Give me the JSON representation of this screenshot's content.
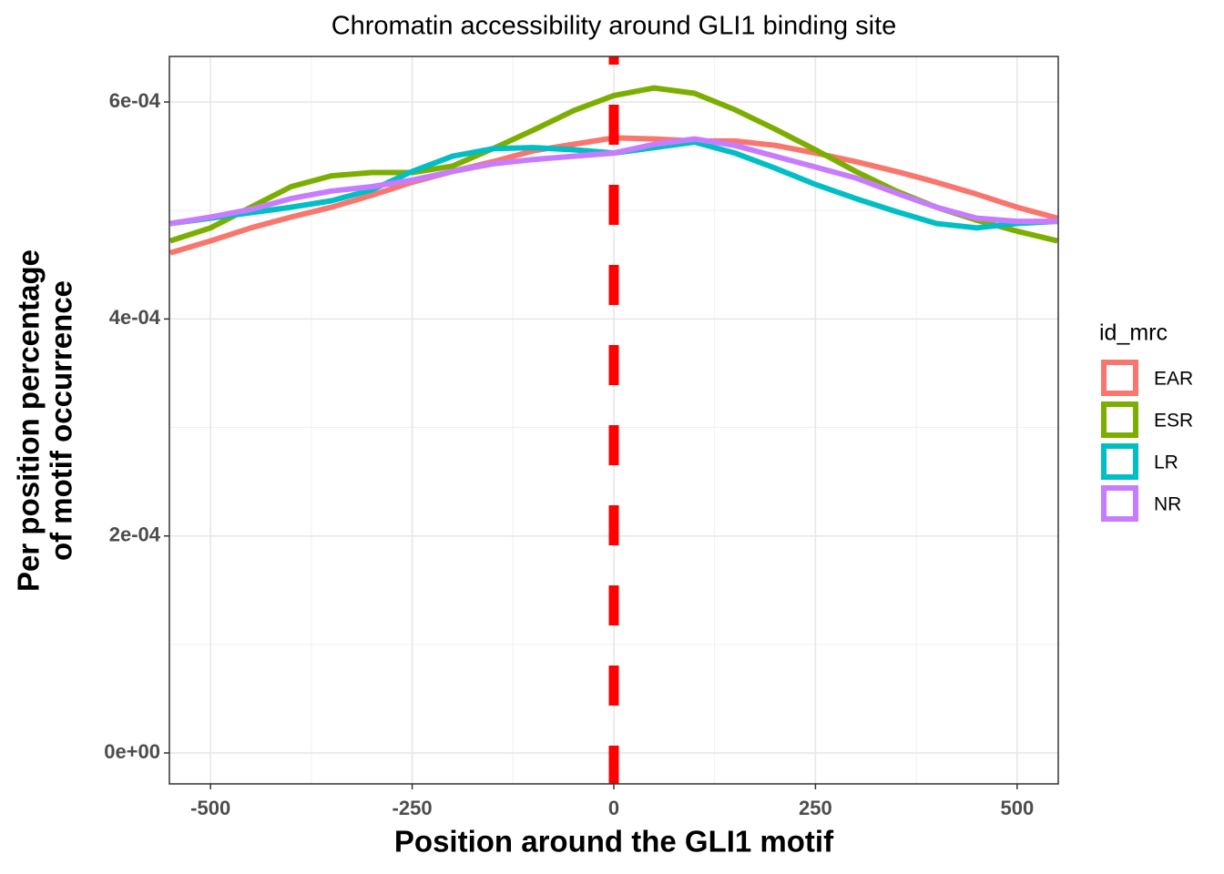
{
  "chart_data": {
    "type": "line",
    "title": "Chromatin accessibility around GLI1 binding site",
    "xlabel": "Position around the GLI1  motif",
    "ylabel": [
      "Per position percentage",
      "of motif occurrence"
    ],
    "x": [
      -550,
      -500,
      -450,
      -400,
      -350,
      -300,
      -250,
      -200,
      -150,
      -100,
      -50,
      0,
      50,
      100,
      150,
      200,
      250,
      300,
      350,
      400,
      450,
      500,
      550
    ],
    "series": [
      {
        "name": "EAR",
        "color": "#F8766D",
        "values": [
          0.000461,
          0.000472,
          0.000484,
          0.000494,
          0.000503,
          0.000514,
          0.000526,
          0.000536,
          0.000545,
          0.000555,
          0.000561,
          0.000567,
          0.000566,
          0.000564,
          0.000564,
          0.00056,
          0.000553,
          0.000545,
          0.000536,
          0.000526,
          0.000515,
          0.000503,
          0.000493
        ]
      },
      {
        "name": "ESR",
        "color": "#7CAE00",
        "values": [
          0.000472,
          0.000484,
          0.000503,
          0.000522,
          0.000532,
          0.000535,
          0.000535,
          0.000541,
          0.000557,
          0.000574,
          0.000592,
          0.000606,
          0.000613,
          0.000608,
          0.000593,
          0.000575,
          0.000556,
          0.000536,
          0.000518,
          0.000503,
          0.000491,
          0.000481,
          0.000472
        ]
      },
      {
        "name": "LR",
        "color": "#00BFC4",
        "values": [
          0.000488,
          0.000493,
          0.000498,
          0.000503,
          0.000509,
          0.000519,
          0.000536,
          0.00055,
          0.000557,
          0.000558,
          0.000556,
          0.000553,
          0.000558,
          0.000563,
          0.000553,
          0.000539,
          0.000524,
          0.000511,
          0.000499,
          0.000488,
          0.000484,
          0.000488,
          0.00049
        ]
      },
      {
        "name": "NR",
        "color": "#C77CFF",
        "values": [
          0.000488,
          0.000494,
          0.000501,
          0.000511,
          0.000518,
          0.000522,
          0.000528,
          0.000536,
          0.000543,
          0.000547,
          0.00055,
          0.000553,
          0.000561,
          0.000566,
          0.00056,
          0.00055,
          0.00054,
          0.00053,
          0.000516,
          0.000503,
          0.000493,
          0.00049,
          0.00049
        ]
      }
    ],
    "legend_title": "id_mrc",
    "xlim": [
      -551,
      551
    ],
    "ylim": [
      -2.85e-05,
      0.000642
    ],
    "xticks": [
      -500,
      -250,
      0,
      250,
      500
    ],
    "yticks": [
      {
        "value": 0,
        "label": "0e+00"
      },
      {
        "value": 0.0002,
        "label": "2e-04"
      },
      {
        "value": 0.0004,
        "label": "4e-04"
      },
      {
        "value": 0.0006,
        "label": "6e-04"
      }
    ],
    "minor_xticks": [
      -375,
      -125,
      125,
      375
    ],
    "minor_yticks": [
      0.0001,
      0.0003,
      0.0005
    ],
    "vline": 0,
    "vline_color": "#FF0000",
    "grid": true
  }
}
